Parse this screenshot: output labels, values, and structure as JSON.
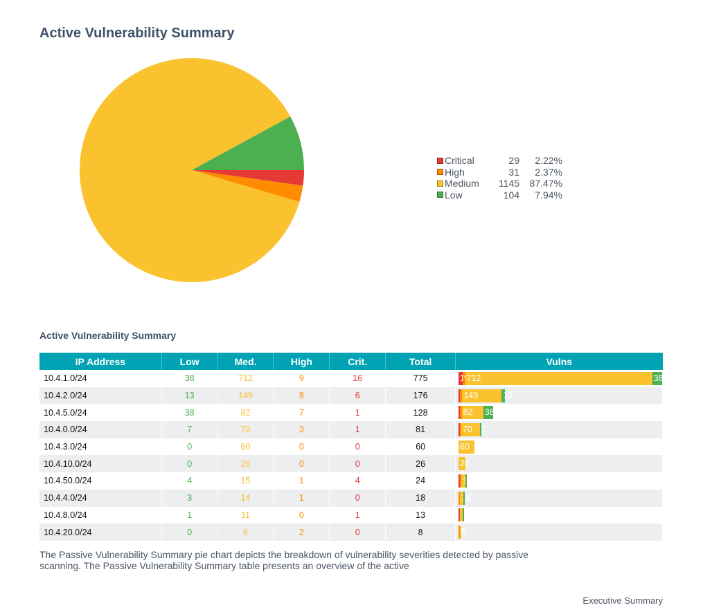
{
  "page": {
    "title": "Active Vulnerability Summary",
    "section_title": "Active Vulnerability Summary",
    "description": "The Passive Vulnerability Summary pie chart depicts the breakdown of vulnerability severities detected by passive scanning. The Passive Vulnerability Summary table presents an overview of the active",
    "footer": "Executive Summary"
  },
  "colors": {
    "critical": "#e53935",
    "high": "#ff8c00",
    "medium": "#fbc22f",
    "low": "#4caf50",
    "header": "#00a3b3"
  },
  "chart_data": {
    "type": "pie",
    "title": "Active Vulnerability Summary",
    "legend_position": "right",
    "slices": [
      {
        "label": "Critical",
        "value": 29,
        "percent": "2.22%",
        "color": "#e53935"
      },
      {
        "label": "High",
        "value": 31,
        "percent": "2.37%",
        "color": "#ff8c00"
      },
      {
        "label": "Medium",
        "value": 1145,
        "percent": "87.47%",
        "color": "#fbc22f"
      },
      {
        "label": "Low",
        "value": 104,
        "percent": "7.94%",
        "color": "#4caf50"
      }
    ]
  },
  "table": {
    "headers": [
      "IP Address",
      "Low",
      "Med.",
      "High",
      "Crit.",
      "Total",
      "Vulns"
    ],
    "rows": [
      {
        "ip": "10.4.1.0/24",
        "low": 38,
        "med": 712,
        "high": 9,
        "crit": 16,
        "total": 775
      },
      {
        "ip": "10.4.2.0/24",
        "low": 13,
        "med": 149,
        "high": 8,
        "crit": 6,
        "total": 176
      },
      {
        "ip": "10.4.5.0/24",
        "low": 38,
        "med": 82,
        "high": 7,
        "crit": 1,
        "total": 128
      },
      {
        "ip": "10.4.0.0/24",
        "low": 7,
        "med": 70,
        "high": 3,
        "crit": 1,
        "total": 81
      },
      {
        "ip": "10.4.3.0/24",
        "low": 0,
        "med": 60,
        "high": 0,
        "crit": 0,
        "total": 60
      },
      {
        "ip": "10.4.10.0/24",
        "low": 0,
        "med": 26,
        "high": 0,
        "crit": 0,
        "total": 26
      },
      {
        "ip": "10.4.50.0/24",
        "low": 4,
        "med": 15,
        "high": 1,
        "crit": 4,
        "total": 24
      },
      {
        "ip": "10.4.4.0/24",
        "low": 3,
        "med": 14,
        "high": 1,
        "crit": 0,
        "total": 18
      },
      {
        "ip": "10.4.8.0/24",
        "low": 1,
        "med": 11,
        "high": 0,
        "crit": 1,
        "total": 13
      },
      {
        "ip": "10.4.20.0/24",
        "low": 0,
        "med": 6,
        "high": 2,
        "crit": 0,
        "total": 8
      }
    ]
  }
}
